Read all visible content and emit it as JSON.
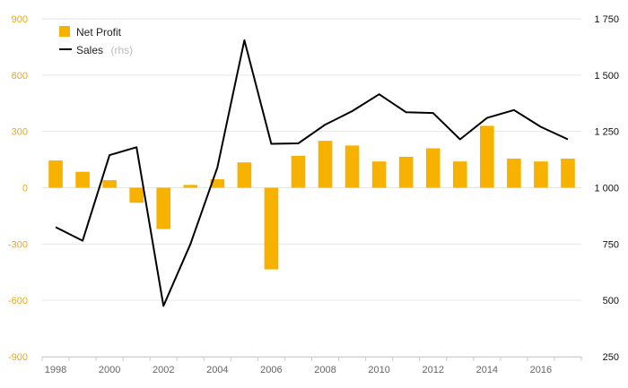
{
  "chart_data": {
    "type": "bar+line",
    "x": [
      1998,
      1999,
      2000,
      2001,
      2002,
      2003,
      2004,
      2005,
      2006,
      2007,
      2008,
      2009,
      2010,
      2011,
      2012,
      2013,
      2014,
      2015,
      2016,
      2017
    ],
    "x_tick_labels": [
      "1998",
      "2000",
      "2002",
      "2004",
      "2006",
      "2008",
      "2010",
      "2012",
      "2014",
      "2016"
    ],
    "series": [
      {
        "name": "Net Profit",
        "type": "bar",
        "axis": "left",
        "color": "#f7b200",
        "values": [
          145,
          85,
          40,
          -80,
          -220,
          15,
          45,
          135,
          -435,
          170,
          250,
          225,
          140,
          165,
          210,
          140,
          330,
          155,
          140,
          155
        ]
      },
      {
        "name": "Sales",
        "type": "line",
        "axis": "right",
        "color": "#000000",
        "values": [
          825,
          765,
          1145,
          1180,
          475,
          750,
          1090,
          1655,
          1195,
          1197,
          1280,
          1340,
          1415,
          1335,
          1332,
          1215,
          1310,
          1345,
          1270,
          1215
        ]
      }
    ],
    "left_axis": {
      "ylim": [
        -900,
        900
      ],
      "ticks": [
        "900",
        "600",
        "300",
        "0",
        "-300",
        "-600",
        "-900"
      ],
      "color": "#f2a900"
    },
    "right_axis": {
      "ylim": [
        250,
        1750
      ],
      "ticks": [
        "1 750",
        "1 500",
        "1 250",
        "1 000",
        "750",
        "500",
        "250"
      ],
      "color": "#111111"
    },
    "legend": {
      "position": "top-left",
      "items": [
        {
          "label": "Net Profit",
          "suffix": ""
        },
        {
          "label": "Sales",
          "suffix": "(rhs)"
        }
      ]
    },
    "grid": true
  }
}
